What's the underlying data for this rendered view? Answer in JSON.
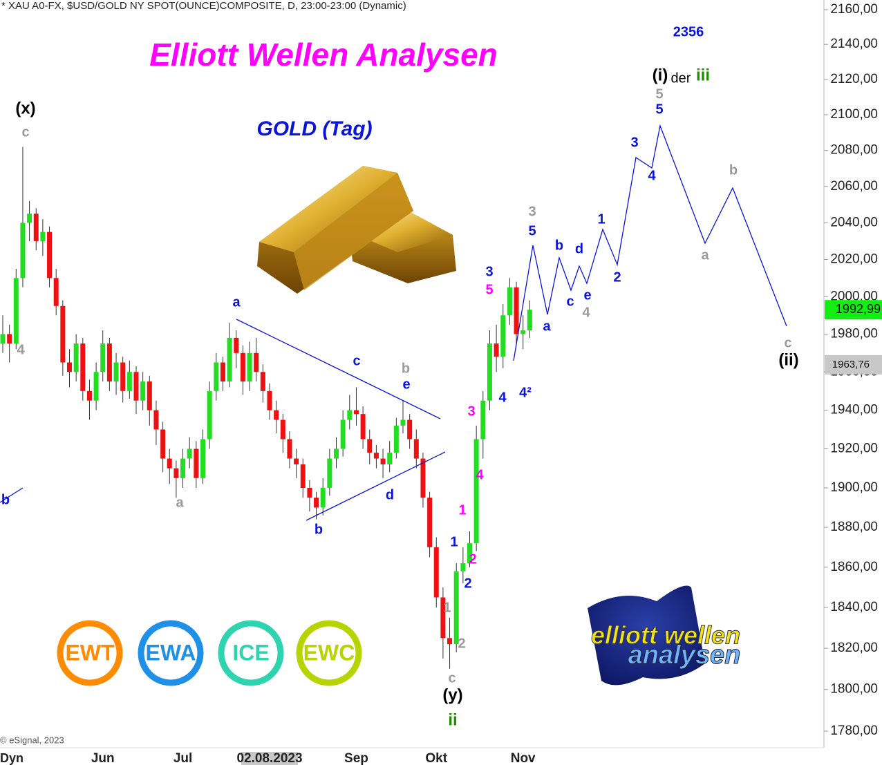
{
  "chart_data": {
    "type": "candlestick",
    "header": "* XAU A0-FX, $USD/GOLD NY SPOT(OUNCE)COMPOSITE, D, 23:00-23:00 (Dynamic)",
    "title": "Elliott Wellen Analysen",
    "subtitle": "GOLD (Tag)",
    "copyright": "© eSignal, 2023",
    "corner_label": "Dyn",
    "log_scale": true,
    "up_color": "#22dd22",
    "down_color": "#ee1111",
    "categories": [
      null,
      null,
      null,
      null,
      null,
      null,
      null,
      null,
      null,
      null,
      null,
      null,
      null,
      null,
      null,
      "Jun",
      null,
      null,
      null,
      null,
      null,
      null,
      null,
      null,
      null,
      null,
      null,
      "Jul",
      null,
      null,
      null,
      null,
      null,
      null,
      null,
      null,
      null,
      null,
      null,
      null,
      "02.08.2023",
      null,
      null,
      null,
      null,
      null,
      null,
      null,
      null,
      null,
      null,
      null,
      null,
      "Sep",
      null,
      null,
      null,
      null,
      null,
      null,
      null,
      null,
      null,
      null,
      null,
      "Okt",
      null,
      null,
      null,
      null,
      null,
      null,
      null,
      null,
      null,
      null,
      null,
      null,
      "Nov",
      null
    ],
    "open": [
      1975,
      1980,
      1975,
      2010,
      2040,
      2045,
      2030,
      2035,
      2010,
      1995,
      1965,
      1960,
      1975,
      1950,
      1945,
      1960,
      1975,
      1955,
      1965,
      1950,
      1960,
      1945,
      1955,
      1940,
      1930,
      1915,
      1910,
      1905,
      1915,
      1920,
      1905,
      1925,
      1950,
      1965,
      1955,
      1978,
      1970,
      1955,
      1970,
      1960,
      1950,
      1940,
      1935,
      1925,
      1915,
      1912,
      1900,
      1895,
      1890,
      1900,
      1915,
      1920,
      1935,
      1940,
      1938,
      1925,
      1918,
      1915,
      1912,
      1918,
      1932,
      1935,
      1925,
      1915,
      1895,
      1870,
      1845,
      1825,
      1822,
      1858,
      1862,
      1872,
      1925,
      1945,
      1975,
      1968,
      1990,
      2005,
      1980,
      1982
    ],
    "high": [
      1990,
      1985,
      2015,
      2082,
      2052,
      2048,
      2042,
      2038,
      2015,
      1998,
      1972,
      1980,
      1978,
      1956,
      1965,
      1982,
      1978,
      1970,
      1968,
      1966,
      1963,
      1960,
      1958,
      1945,
      1934,
      1920,
      1914,
      1920,
      1926,
      1924,
      1930,
      1955,
      1970,
      1968,
      1986,
      1982,
      1974,
      1976,
      1978,
      1964,
      1954,
      1945,
      1938,
      1929,
      1920,
      1915,
      1904,
      1898,
      1905,
      1920,
      1926,
      1940,
      1948,
      1952,
      1942,
      1930,
      1922,
      1920,
      1924,
      1936,
      1945,
      1938,
      1930,
      1918,
      1898,
      1875,
      1850,
      1835,
      1862,
      1870,
      1878,
      1932,
      1950,
      1982,
      1985,
      1996,
      2010,
      2008,
      1990,
      1998
    ],
    "low": [
      1970,
      1965,
      1972,
      2005,
      2030,
      2025,
      2022,
      2005,
      1990,
      1958,
      1952,
      1955,
      1945,
      1935,
      1940,
      1955,
      1950,
      1948,
      1944,
      1946,
      1938,
      1940,
      1932,
      1922,
      1908,
      1902,
      1895,
      1900,
      1910,
      1900,
      1902,
      1920,
      1945,
      1950,
      1952,
      1962,
      1948,
      1950,
      1955,
      1944,
      1935,
      1928,
      1918,
      1910,
      1905,
      1895,
      1888,
      1884,
      1886,
      1896,
      1910,
      1916,
      1930,
      1932,
      1920,
      1912,
      1910,
      1905,
      1908,
      1915,
      1928,
      1920,
      1910,
      1890,
      1865,
      1840,
      1815,
      1810,
      1818,
      1852,
      1860,
      1868,
      1915,
      1940,
      1960,
      1962,
      1985,
      1975,
      1972,
      1978
    ],
    "close": [
      1980,
      1975,
      2010,
      2040,
      2045,
      2030,
      2035,
      2010,
      1995,
      1965,
      1960,
      1975,
      1950,
      1945,
      1960,
      1975,
      1955,
      1965,
      1950,
      1960,
      1945,
      1955,
      1940,
      1930,
      1915,
      1910,
      1905,
      1915,
      1920,
      1905,
      1925,
      1950,
      1965,
      1955,
      1978,
      1970,
      1955,
      1970,
      1960,
      1950,
      1940,
      1935,
      1925,
      1915,
      1912,
      1900,
      1895,
      1890,
      1900,
      1915,
      1920,
      1935,
      1940,
      1938,
      1925,
      1918,
      1915,
      1912,
      1918,
      1932,
      1935,
      1925,
      1915,
      1895,
      1870,
      1845,
      1825,
      1822,
      1858,
      1862,
      1872,
      1925,
      1945,
      1975,
      1968,
      1990,
      2005,
      1980,
      1982,
      1992.99
    ],
    "ylim": [
      1780,
      2160
    ],
    "yticks": [
      {
        "value": 1780,
        "label": "1780,00"
      },
      {
        "value": 1800,
        "label": "1800,00"
      },
      {
        "value": 1820,
        "label": "1820,00"
      },
      {
        "value": 1840,
        "label": "1840,00"
      },
      {
        "value": 1860,
        "label": "1860,00"
      },
      {
        "value": 1880,
        "label": "1880,00"
      },
      {
        "value": 1900,
        "label": "1900,00"
      },
      {
        "value": 1920,
        "label": "1920,00"
      },
      {
        "value": 1940,
        "label": "1940,00"
      },
      {
        "value": 1960,
        "label": "1960,00"
      },
      {
        "value": 1980,
        "label": "1980,00"
      },
      {
        "value": 2000,
        "label": "2000,00"
      },
      {
        "value": 2020,
        "label": "2020,00"
      },
      {
        "value": 2040,
        "label": "2040,00"
      },
      {
        "value": 2060,
        "label": "2060,00"
      },
      {
        "value": 2080,
        "label": "2080,00"
      },
      {
        "value": 2100,
        "label": "2100,00"
      },
      {
        "value": 2120,
        "label": "2120,00"
      },
      {
        "value": 2140,
        "label": "2140,00"
      },
      {
        "value": 2160,
        "label": "2160,00"
      }
    ],
    "price_tags": [
      {
        "value": 1992.99,
        "label": "1992,99"
      },
      {
        "value": 1963.76,
        "label": "1963,76"
      }
    ],
    "annotations": [
      "(x)",
      "c",
      "4",
      "b",
      "a",
      "a",
      "c",
      "b",
      "e",
      "b",
      "d",
      "3",
      "4",
      "1",
      "2",
      "1",
      "2",
      "1",
      "2",
      "c",
      "(y)",
      "ii",
      "3",
      "5",
      "4",
      "4²",
      "a",
      "3",
      "5",
      "b",
      "c",
      "d",
      "e",
      "4",
      "1",
      "2",
      "3",
      "4",
      "5",
      "5",
      "(i)",
      "der",
      "iii",
      "2356",
      "b",
      "a",
      "c",
      "(ii)"
    ]
  },
  "logos": [
    "EWT",
    "EWA",
    "ICE",
    "EWC"
  ],
  "brand": [
    "elliott wellen",
    "analysen"
  ]
}
